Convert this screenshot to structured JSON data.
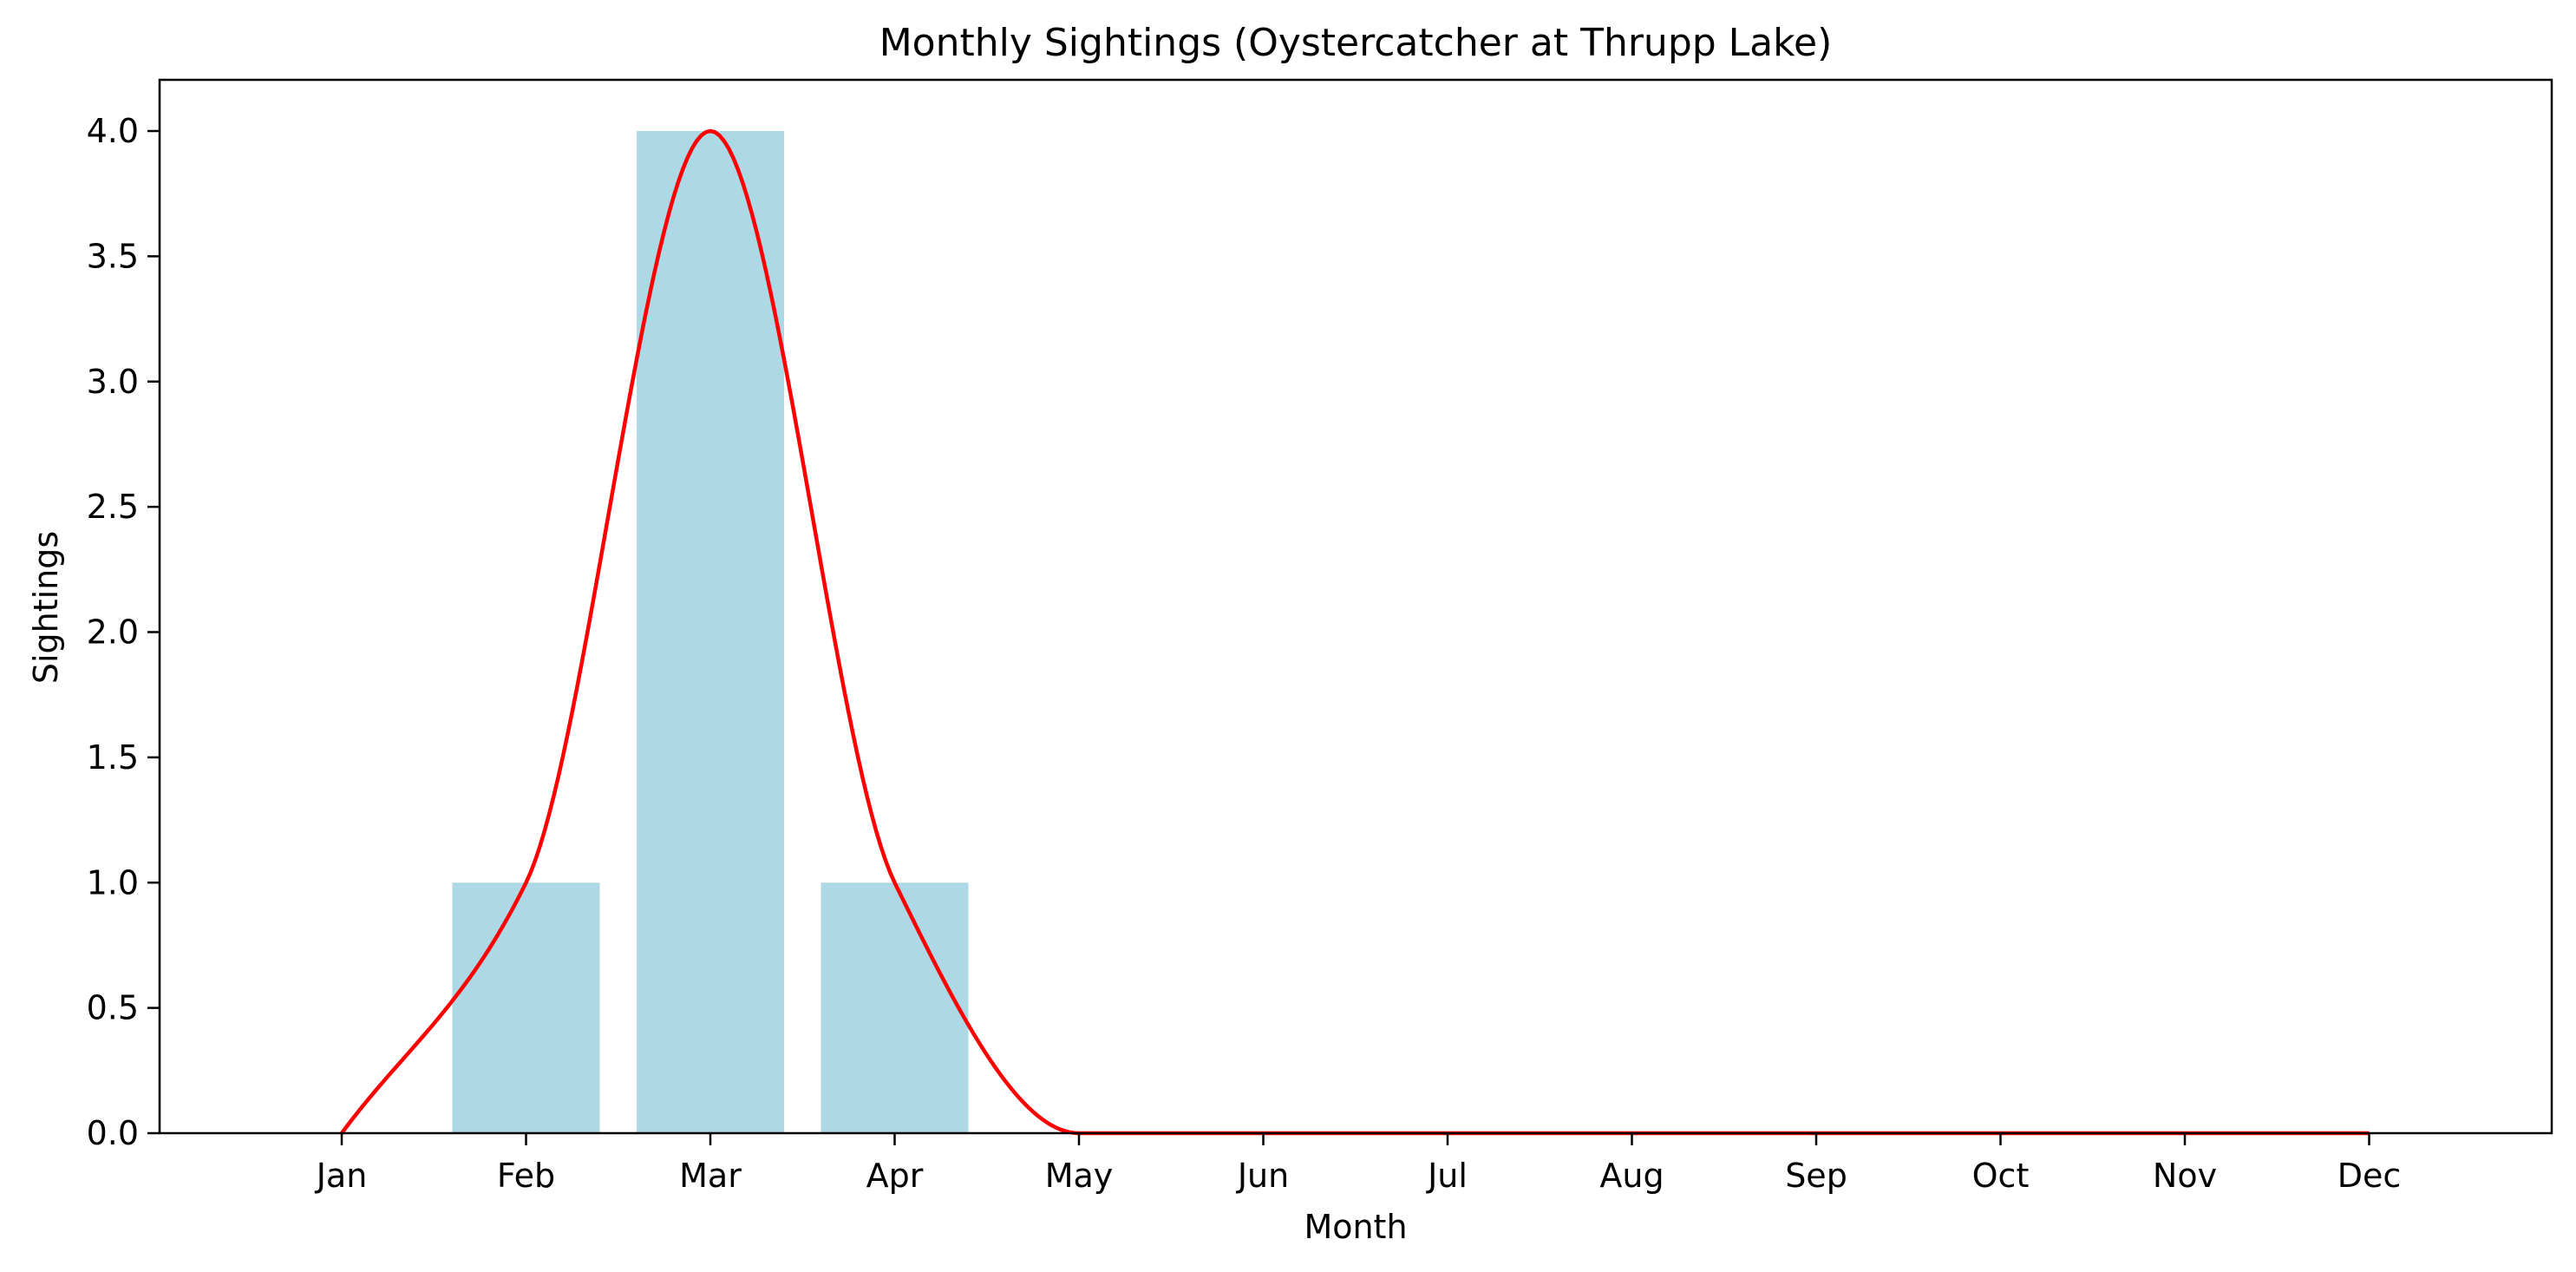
{
  "chart_data": {
    "type": "bar",
    "title": "Monthly Sightings (Oystercatcher at Thrupp Lake)",
    "xlabel": "Month",
    "ylabel": "Sightings",
    "categories": [
      "Jan",
      "Feb",
      "Mar",
      "Apr",
      "May",
      "Jun",
      "Jul",
      "Aug",
      "Sep",
      "Oct",
      "Nov",
      "Dec"
    ],
    "values": [
      0,
      1,
      4,
      1,
      0,
      0,
      0,
      0,
      0,
      0,
      0,
      0
    ],
    "ylim": [
      0,
      4.2
    ],
    "yticks": [
      "0.0",
      "0.5",
      "1.0",
      "1.5",
      "2.0",
      "2.5",
      "3.0",
      "3.5",
      "4.0"
    ],
    "grid": false,
    "bar_color": "#add8e6",
    "line_color": "#ff0000",
    "overlay": "smooth line through monthly values"
  }
}
